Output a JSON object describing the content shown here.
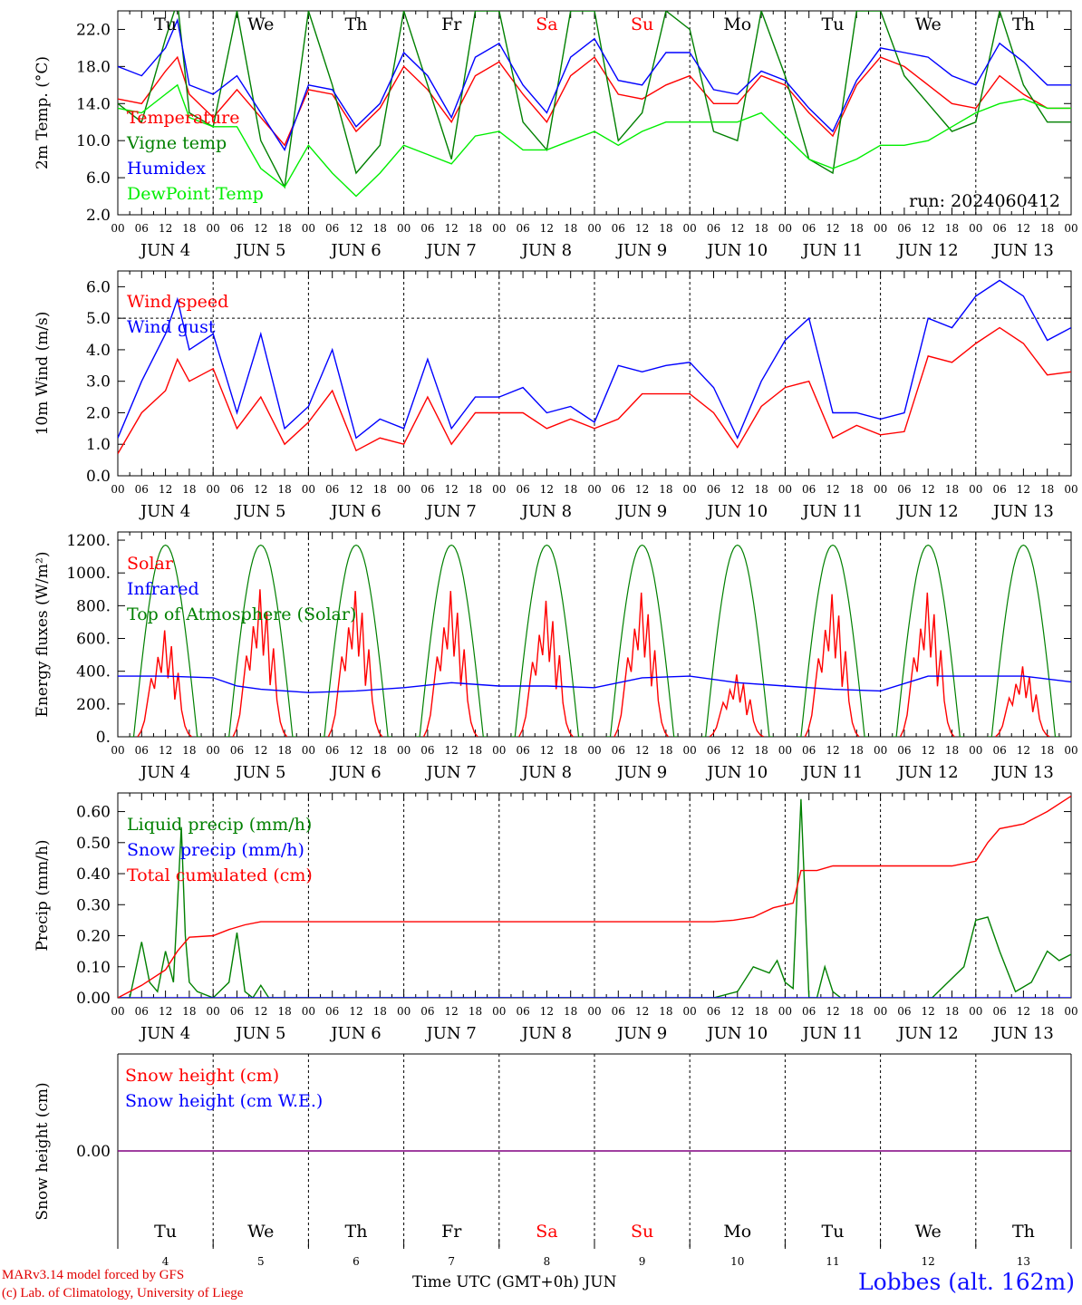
{
  "run_label": "run: 2024060412",
  "station_label": "Lobbes (alt. 162m)",
  "credit_line1": "MARv3.14 model forced by GFS",
  "credit_line2": "(c) Lab. of Climatology, University of Liege",
  "time_axis_title": "Time UTC (GMT+0h) JUN",
  "colors": {
    "red": "#ff0000",
    "green": "#008000",
    "blue": "#0000ff",
    "lightgreen": "#00ee00",
    "purple": "#800080",
    "weekend": "#ff0000"
  },
  "hour_ticks": [
    "00",
    "06",
    "12",
    "18"
  ],
  "day_labels": [
    "JUN  4",
    "JUN  5",
    "JUN  6",
    "JUN  7",
    "JUN  8",
    "JUN  9",
    "JUN 10",
    "JUN 11",
    "JUN 12",
    "JUN 13"
  ],
  "weekdays": [
    "Tu",
    "We",
    "Th",
    "Fr",
    "Sa",
    "Su",
    "Mo",
    "Tu",
    "We",
    "Th"
  ],
  "weekend_flags": [
    false,
    false,
    false,
    false,
    true,
    true,
    false,
    false,
    false,
    false
  ],
  "day_numbers": [
    "4",
    "5",
    "6",
    "7",
    "8",
    "9",
    "10",
    "11",
    "12",
    "13"
  ],
  "chart_data": [
    {
      "type": "line",
      "ylabel": "2m Temp. (°C)",
      "ylim": [
        2.0,
        24.0
      ],
      "yticks": [
        "2.0",
        "6.0",
        "10.0",
        "14.0",
        "18.0",
        "22.0"
      ],
      "x_unit": "hours since JUN 4 00 UTC",
      "series": [
        {
          "name": "Temperature",
          "color": "#ff0000",
          "x": [
            0,
            6,
            12,
            15,
            18,
            24,
            30,
            36,
            42,
            48,
            54,
            60,
            66,
            72,
            78,
            84,
            90,
            96,
            102,
            108,
            114,
            120,
            126,
            132,
            138,
            144,
            150,
            156,
            162,
            168,
            174,
            180,
            186,
            192,
            198,
            204,
            210,
            216,
            222,
            228,
            234,
            240
          ],
          "y": [
            14.5,
            14.0,
            17.5,
            19.0,
            15.0,
            12.5,
            15.5,
            12.5,
            9.5,
            15.5,
            15.0,
            11.0,
            13.5,
            18.0,
            15.5,
            12.0,
            17.0,
            18.5,
            15.0,
            12.0,
            17.0,
            19.0,
            15.0,
            14.5,
            16.0,
            17.0,
            14.0,
            14.0,
            17.0,
            16.0,
            13.0,
            10.5,
            16.0,
            19.0,
            18.0,
            16.0,
            14.0,
            13.5,
            17.0,
            15.0,
            13.5,
            13.5
          ]
        },
        {
          "name": "Vigne temp",
          "color": "#008000",
          "x": [
            0,
            6,
            12,
            15,
            18,
            24,
            30,
            36,
            42,
            48,
            54,
            60,
            66,
            72,
            78,
            84,
            90,
            96,
            102,
            108,
            114,
            120,
            126,
            132,
            138,
            144,
            150,
            156,
            162,
            168,
            174,
            180,
            186,
            192,
            198,
            204,
            210,
            216,
            222,
            228,
            234,
            240
          ],
          "y": [
            14.0,
            12.0,
            21.0,
            25.0,
            13.0,
            11.5,
            24.0,
            10.0,
            5.0,
            24.0,
            16.0,
            6.5,
            9.5,
            24.0,
            16.0,
            8.0,
            24.0,
            24.0,
            12.0,
            9.0,
            24.0,
            24.0,
            10.0,
            13.0,
            24.0,
            22.0,
            11.0,
            10.0,
            24.0,
            17.0,
            8.0,
            6.5,
            24.0,
            24.0,
            17.0,
            14.0,
            11.0,
            12.0,
            24.0,
            16.0,
            12.0,
            12.0
          ]
        },
        {
          "name": "Humidex",
          "color": "#0000ff",
          "x": [
            0,
            6,
            12,
            15,
            18,
            24,
            30,
            36,
            42,
            48,
            54,
            60,
            66,
            72,
            78,
            84,
            90,
            96,
            102,
            108,
            114,
            120,
            126,
            132,
            138,
            144,
            150,
            156,
            162,
            168,
            174,
            180,
            186,
            192,
            198,
            204,
            210,
            216,
            222,
            228,
            234,
            240
          ],
          "y": [
            18.0,
            17.0,
            20.0,
            23.0,
            16.0,
            15.0,
            17.0,
            13.0,
            9.0,
            16.0,
            15.5,
            11.5,
            14.0,
            19.5,
            17.0,
            12.5,
            19.0,
            20.5,
            16.0,
            13.0,
            19.0,
            21.0,
            16.5,
            16.0,
            19.5,
            19.5,
            15.5,
            15.0,
            17.5,
            16.5,
            13.5,
            11.0,
            16.5,
            20.0,
            19.5,
            19.0,
            17.0,
            16.0,
            20.5,
            18.5,
            16.0,
            16.0
          ]
        },
        {
          "name": "DewPoint Temp",
          "color": "#00ee00",
          "x": [
            0,
            6,
            12,
            15,
            18,
            24,
            30,
            36,
            42,
            48,
            54,
            60,
            66,
            72,
            78,
            84,
            90,
            96,
            102,
            108,
            114,
            120,
            126,
            132,
            138,
            144,
            150,
            156,
            162,
            168,
            174,
            180,
            186,
            192,
            198,
            204,
            210,
            216,
            222,
            228,
            234,
            240
          ],
          "y": [
            13.5,
            13.0,
            15.0,
            16.0,
            12.5,
            11.5,
            11.5,
            7.0,
            5.0,
            9.5,
            6.5,
            4.0,
            6.5,
            9.5,
            8.5,
            7.5,
            10.5,
            11.0,
            9.0,
            9.0,
            10.0,
            11.0,
            9.5,
            11.0,
            12.0,
            12.0,
            12.0,
            12.0,
            13.0,
            10.5,
            8.0,
            7.0,
            8.0,
            9.5,
            9.5,
            10.0,
            11.5,
            13.0,
            14.0,
            14.5,
            13.5,
            13.5
          ]
        }
      ],
      "annotations": [
        "run: 2024060412"
      ]
    },
    {
      "type": "line",
      "ylabel": "10m Wind (m/s)",
      "ylim": [
        0.0,
        6.5
      ],
      "yticks": [
        "0.0",
        "1.0",
        "2.0",
        "3.0",
        "4.0",
        "5.0",
        "6.0"
      ],
      "reference_line": 5.0,
      "x_unit": "hours since JUN 4 00 UTC",
      "series": [
        {
          "name": "Wind speed",
          "color": "#ff0000",
          "x": [
            0,
            6,
            12,
            15,
            18,
            24,
            30,
            36,
            42,
            48,
            54,
            60,
            66,
            72,
            78,
            84,
            90,
            96,
            102,
            108,
            114,
            120,
            126,
            132,
            138,
            144,
            150,
            156,
            162,
            168,
            174,
            180,
            186,
            192,
            198,
            204,
            210,
            216,
            222,
            228,
            234,
            240
          ],
          "y": [
            0.7,
            2.0,
            2.7,
            3.7,
            3.0,
            3.4,
            1.5,
            2.5,
            1.0,
            1.7,
            2.7,
            0.8,
            1.2,
            1.0,
            2.5,
            1.0,
            2.0,
            2.0,
            2.0,
            1.5,
            1.8,
            1.5,
            1.8,
            2.6,
            2.6,
            2.6,
            2.0,
            0.9,
            2.2,
            2.8,
            3.0,
            1.2,
            1.6,
            1.3,
            1.4,
            3.8,
            3.6,
            4.2,
            4.7,
            4.2,
            3.2,
            3.3
          ]
        },
        {
          "name": "Wind gust",
          "color": "#0000ff",
          "x": [
            0,
            6,
            12,
            15,
            18,
            24,
            30,
            36,
            42,
            48,
            54,
            60,
            66,
            72,
            78,
            84,
            90,
            96,
            102,
            108,
            114,
            120,
            126,
            132,
            138,
            144,
            150,
            156,
            162,
            168,
            174,
            180,
            186,
            192,
            198,
            204,
            210,
            216,
            222,
            228,
            234,
            240
          ],
          "y": [
            1.2,
            3.0,
            4.5,
            5.6,
            4.0,
            4.5,
            2.0,
            4.5,
            1.5,
            2.2,
            4.0,
            1.2,
            1.8,
            1.5,
            3.7,
            1.5,
            2.5,
            2.5,
            2.8,
            2.0,
            2.2,
            1.7,
            3.5,
            3.3,
            3.5,
            3.6,
            2.8,
            1.2,
            3.0,
            4.3,
            5.0,
            2.0,
            2.0,
            1.8,
            2.0,
            5.0,
            4.7,
            5.7,
            6.2,
            5.7,
            4.3,
            4.7
          ]
        }
      ]
    },
    {
      "type": "line",
      "ylabel": "Energy fluxes (W/m²)",
      "ylim": [
        0,
        1250
      ],
      "yticks": [
        "0.",
        "200.",
        "400.",
        "600.",
        "800.",
        "1000.",
        "1200."
      ],
      "x_unit": "hours since JUN 4 00 UTC",
      "series": [
        {
          "name": "Solar",
          "color": "#ff0000",
          "peaks": [
            650,
            900,
            890,
            890,
            830,
            880,
            380,
            870,
            880,
            430
          ]
        },
        {
          "name": "Infrared",
          "color": "#0000ff",
          "x": [
            0,
            12,
            24,
            30,
            36,
            48,
            60,
            72,
            84,
            96,
            108,
            120,
            132,
            144,
            156,
            168,
            180,
            192,
            204,
            216,
            228,
            240
          ],
          "y": [
            370,
            370,
            360,
            310,
            290,
            270,
            280,
            300,
            330,
            310,
            310,
            300,
            360,
            370,
            330,
            310,
            290,
            280,
            370,
            370,
            370,
            335
          ]
        },
        {
          "name": "Top of Atmosphere (Solar)",
          "color": "#008000",
          "peak": 1170
        }
      ]
    },
    {
      "type": "line",
      "ylabel": "Precip (mm/h)",
      "ylim": [
        0.0,
        0.66
      ],
      "yticks": [
        "0.00",
        "0.10",
        "0.20",
        "0.30",
        "0.40",
        "0.50",
        "0.60"
      ],
      "x_unit": "hours since JUN 4 00 UTC",
      "series": [
        {
          "name": "Liquid precip (mm/h)",
          "color": "#008000",
          "x": [
            0,
            3,
            6,
            8,
            10,
            12,
            14,
            16,
            17,
            18,
            20,
            24,
            28,
            30,
            32,
            34,
            36,
            38,
            42,
            48,
            150,
            156,
            160,
            164,
            166,
            168,
            170,
            172,
            174,
            176,
            178,
            180,
            182,
            186,
            198,
            205,
            209,
            213,
            216,
            219,
            222,
            226,
            230,
            234,
            237,
            240
          ],
          "y": [
            0,
            0,
            0.18,
            0.05,
            0.02,
            0.15,
            0.05,
            0.55,
            0.2,
            0.05,
            0.02,
            0,
            0.05,
            0.21,
            0.02,
            0.0,
            0.04,
            0.0,
            0,
            0,
            0,
            0.02,
            0.1,
            0.08,
            0.12,
            0.05,
            0.03,
            0.64,
            0.0,
            0.0,
            0.1,
            0.02,
            0,
            0,
            0,
            0.0,
            0.05,
            0.1,
            0.25,
            0.26,
            0.15,
            0.02,
            0.05,
            0.15,
            0.12,
            0.14
          ]
        },
        {
          "name": "Snow precip (mm/h)",
          "color": "#0000ff",
          "x": [
            0,
            240
          ],
          "y": [
            0,
            0
          ]
        },
        {
          "name": "Total cumulated (cm)",
          "color": "#ff0000",
          "x": [
            0,
            6,
            12,
            15,
            18,
            24,
            28,
            32,
            36,
            48,
            150,
            155,
            160,
            165,
            170,
            172,
            176,
            180,
            186,
            198,
            210,
            216,
            219,
            222,
            228,
            234,
            240
          ],
          "y": [
            0.0,
            0.04,
            0.09,
            0.15,
            0.195,
            0.2,
            0.22,
            0.235,
            0.245,
            0.245,
            0.245,
            0.25,
            0.26,
            0.29,
            0.305,
            0.41,
            0.41,
            0.425,
            0.425,
            0.425,
            0.425,
            0.44,
            0.5,
            0.545,
            0.56,
            0.6,
            0.65
          ]
        }
      ]
    },
    {
      "type": "line",
      "ylabel": "Snow height (cm)",
      "yticks": [
        "0.00"
      ],
      "x_unit": "hours since JUN 4 00 UTC",
      "series": [
        {
          "name": "Snow height (cm)",
          "color": "#ff0000",
          "x": [
            0,
            240
          ],
          "y": [
            0,
            0
          ]
        },
        {
          "name": "Snow height (cm W.E.)",
          "color": "#0000ff",
          "x": [
            0,
            240
          ],
          "y": [
            0,
            0
          ]
        }
      ]
    }
  ]
}
